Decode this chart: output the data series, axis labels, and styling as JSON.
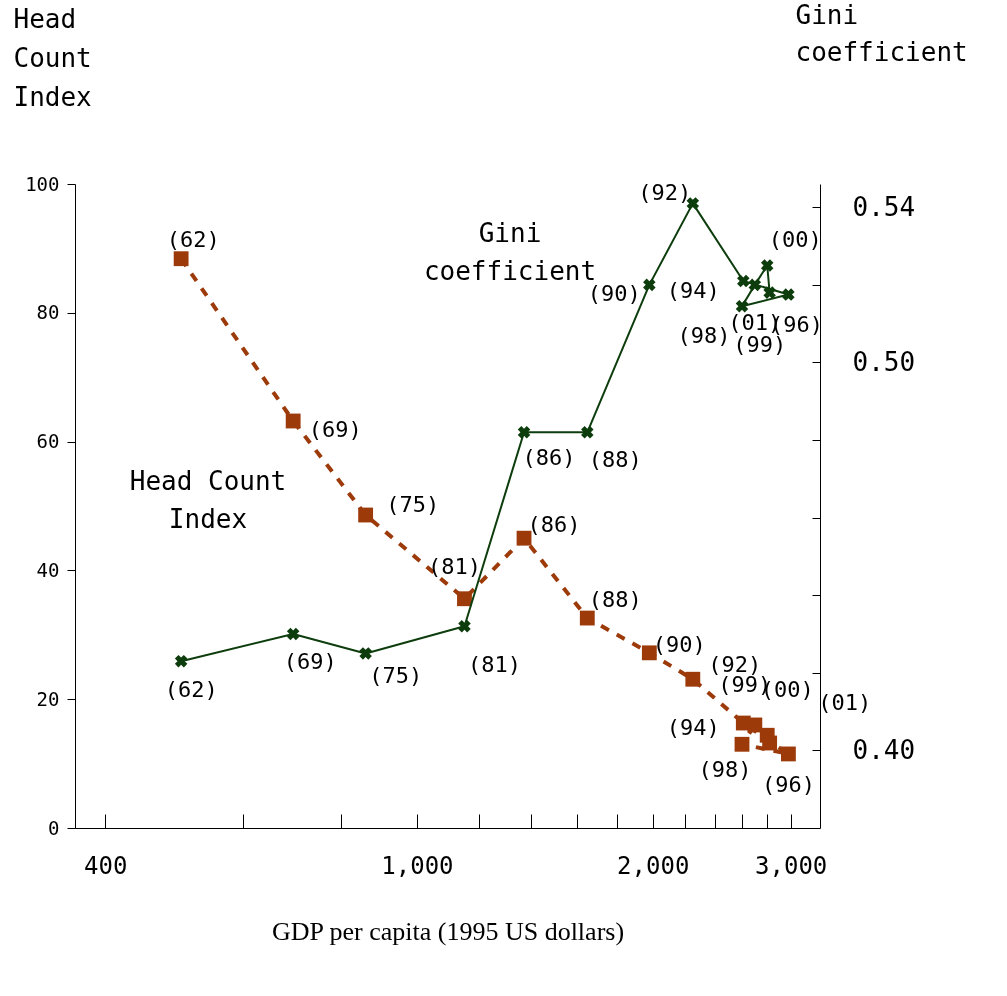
{
  "chart_data": {
    "type": "line",
    "xlabel": "GDP per capita (1995 US dollars)",
    "ylabel": "Head Count Index",
    "y2label": "Gini coefficient",
    "log": "x",
    "x": [
      500,
      695,
      860,
      1150,
      1370,
      1650,
      1980,
      2250,
      2610,
      2980,
      2600,
      2700,
      2800,
      2820
    ],
    "xlim": [
      366,
      3270
    ],
    "xticks": [
      400,
      {
        "value": 600,
        "label": null
      },
      {
        "value": 800,
        "label": null
      },
      {
        "value": 1000,
        "label": "1,000"
      },
      {
        "value": 1200,
        "label": null
      },
      {
        "value": 1400,
        "label": null
      },
      {
        "value": 1600,
        "label": null
      },
      {
        "value": 1800,
        "label": null
      },
      {
        "value": 2000,
        "label": "2,000"
      },
      {
        "value": 2200,
        "label": null
      },
      {
        "value": 2400,
        "label": null
      },
      {
        "value": 2600,
        "label": null
      },
      {
        "value": 2800,
        "label": null
      },
      {
        "value": 3000,
        "label": "3,000"
      }
    ],
    "ylim": [
      0,
      100
    ],
    "yticks": [
      0,
      20,
      40,
      60,
      80,
      100
    ],
    "y2lim": [
      0.38,
      0.546
    ],
    "y2ticks": [
      {
        "value": 0.4,
        "label": "0.40"
      },
      {
        "value": 0.42,
        "label": null
      },
      {
        "value": 0.44,
        "label": null
      },
      {
        "value": 0.46,
        "label": null
      },
      {
        "value": 0.48,
        "label": null
      },
      {
        "value": 0.5,
        "label": "0.50"
      },
      {
        "value": 0.52,
        "label": null
      },
      {
        "value": 0.54,
        "label": "0.54"
      }
    ],
    "grid": false,
    "series": [
      {
        "color": "#9c3a0a",
        "marker": "square",
        "line_style": "dashed",
        "values": [
          88.4,
          63.2,
          48.6,
          35.6,
          45.0,
          32.6,
          27.2,
          23.1,
          16.3,
          11.5,
          13.0,
          16.0,
          14.4,
          13.2
        ]
      },
      {
        "color": "#0d3d0d",
        "marker": "cross",
        "line_style": "solid",
        "axis": "y2",
        "values": [
          0.423,
          0.43,
          0.425,
          0.432,
          0.482,
          0.482,
          0.52,
          0.541,
          0.521,
          0.5175,
          0.5145,
          0.52,
          0.525,
          0.518
        ]
      }
    ],
    "annotations": [
      "Gini\ncoefficient",
      "Head Count\nIndex",
      {
        "text": "(62)",
        "x": 500,
        "y": 88.4
      },
      {
        "text": "(69)",
        "x": 695,
        "y": 63.2
      },
      {
        "text": "(75)",
        "x": 860,
        "y": 48.6
      },
      {
        "text": "(81)",
        "x": 1150,
        "y": 35.6
      },
      {
        "text": "(86)",
        "x": 1370,
        "y": 45.0
      },
      {
        "text": "(88)",
        "x": 1650,
        "y": 32.6
      },
      {
        "text": "(90)",
        "x": 1980,
        "y": 27.2
      },
      {
        "text": "(92)",
        "x": 2250,
        "y": 23.1
      },
      {
        "text": "(94)",
        "x": 2610,
        "y": 16.3
      },
      {
        "text": "(96)",
        "x": 2980,
        "y": 11.5
      },
      {
        "text": "(98)",
        "x": 2600,
        "y": 13.0
      },
      {
        "text": "(99)",
        "x": 2700,
        "y": 16.0
      },
      {
        "text": "(00)",
        "x": 2800,
        "y": 14.4
      },
      {
        "text": "(01)",
        "x": 2820,
        "y": 13.2
      },
      {
        "text": "(62)",
        "x": 500,
        "y": 25.9
      },
      {
        "text": "(69)",
        "x": 695,
        "y": 30.1
      },
      {
        "text": "(75)",
        "x": 860,
        "y": 27.1
      },
      {
        "text": "(81)",
        "x": 1150,
        "y": 31.3
      },
      {
        "text": "(86)",
        "x": 1370,
        "y": 61.4
      },
      {
        "text": "(88)",
        "x": 1650,
        "y": 61.4
      },
      {
        "text": "(90)",
        "x": 1980,
        "y": 84.3
      },
      {
        "text": "(92)",
        "x": 2250,
        "y": 97.0
      },
      {
        "text": "(94)",
        "x": 2610,
        "y": 84.9
      },
      {
        "text": "(96)",
        "x": 2980,
        "y": 82.8
      },
      {
        "text": "(98)",
        "x": 2600,
        "y": 81.0
      },
      {
        "text": "(99)",
        "x": 2700,
        "y": 84.3
      },
      {
        "text": "(00)",
        "x": 2800,
        "y": 87.3
      },
      {
        "text": "(01)",
        "x": 2820,
        "y": 83.1
      }
    ]
  }
}
